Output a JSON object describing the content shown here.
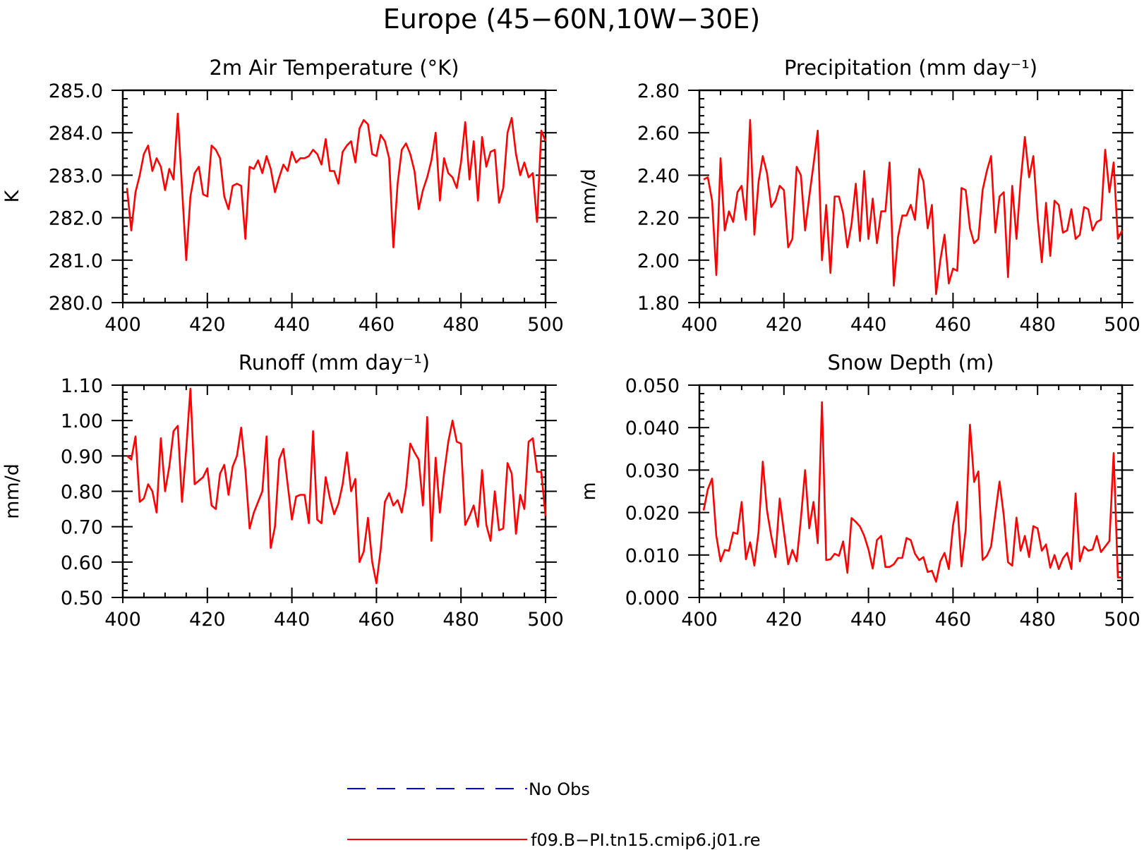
{
  "figure": {
    "title": "Europe (45−60N,10W−30E)"
  },
  "colors": {
    "model": "#ff0000",
    "obs": "#0000ff",
    "axes": "#000000"
  },
  "legend": {
    "entries": [
      {
        "label": "No Obs",
        "color": "#0000ff",
        "style": "dashed"
      },
      {
        "label": "f09.B−PI.tn15.cmip6.j01.re",
        "color": "#ff0000",
        "style": "solid"
      }
    ]
  },
  "chart_data": [
    {
      "type": "line",
      "title": "2m Air Temperature (°K)",
      "ylabel": "K",
      "xlim": [
        400,
        500
      ],
      "ylim": [
        280.0,
        285.0
      ],
      "xticks": [
        400,
        420,
        440,
        460,
        480,
        500
      ],
      "yticks": [
        280.0,
        281.0,
        282.0,
        283.0,
        284.0,
        285.0
      ],
      "ytick_labels": [
        "280.0",
        "281.0",
        "282.0",
        "283.0",
        "284.0",
        "285.0"
      ],
      "grid": false,
      "series": [
        {
          "x_start": 401,
          "values": [
            282.7,
            281.7,
            282.6,
            283.0,
            283.5,
            283.7,
            283.1,
            283.4,
            283.2,
            282.65,
            283.15,
            282.9,
            284.45,
            282.7,
            281.0,
            282.5,
            283.05,
            283.2,
            282.55,
            282.5,
            283.7,
            283.6,
            283.4,
            282.5,
            282.2,
            282.75,
            282.8,
            282.75,
            281.5,
            283.2,
            283.15,
            283.35,
            283.05,
            283.45,
            283.15,
            282.6,
            282.95,
            283.25,
            283.1,
            283.55,
            283.3,
            283.4,
            283.4,
            283.45,
            283.6,
            283.5,
            283.25,
            283.85,
            283.1,
            283.1,
            282.8,
            283.55,
            283.7,
            283.8,
            283.3,
            284.1,
            284.3,
            284.2,
            283.5,
            283.45,
            283.95,
            283.8,
            283.4,
            281.3,
            282.8,
            283.6,
            283.75,
            283.5,
            283.1,
            282.2,
            282.65,
            282.95,
            283.35,
            284.0,
            282.4,
            283.4,
            283.05,
            282.95,
            282.7,
            283.3,
            284.25,
            282.9,
            283.8,
            282.4,
            283.9,
            283.2,
            283.55,
            283.6,
            282.35,
            282.7,
            284.0,
            284.35,
            283.5,
            283.0,
            283.3,
            282.95,
            283.05,
            281.9,
            284.05,
            283.8
          ]
        }
      ]
    },
    {
      "type": "line",
      "title": "Precipitation (mm day⁻¹)",
      "ylabel": "mm/d",
      "xlim": [
        400,
        500
      ],
      "ylim": [
        1.8,
        2.8
      ],
      "xticks": [
        400,
        420,
        440,
        460,
        480,
        500
      ],
      "yticks": [
        1.8,
        2.0,
        2.2,
        2.4,
        2.6,
        2.8
      ],
      "ytick_labels": [
        "1.80",
        "2.00",
        "2.20",
        "2.40",
        "2.60",
        "2.80"
      ],
      "grid": false,
      "series": [
        {
          "x_start": 401,
          "values": [
            2.38,
            2.39,
            2.28,
            1.93,
            2.48,
            2.14,
            2.23,
            2.18,
            2.32,
            2.35,
            2.19,
            2.66,
            2.12,
            2.37,
            2.49,
            2.41,
            2.25,
            2.28,
            2.35,
            2.33,
            2.06,
            2.1,
            2.44,
            2.4,
            2.14,
            2.3,
            2.45,
            2.61,
            2.0,
            2.26,
            1.94,
            2.3,
            2.3,
            2.22,
            2.06,
            2.17,
            2.36,
            2.09,
            2.42,
            2.1,
            2.29,
            2.08,
            2.23,
            2.23,
            2.46,
            1.88,
            2.11,
            2.21,
            2.21,
            2.26,
            2.19,
            2.43,
            2.37,
            2.15,
            2.26,
            1.84,
            2.0,
            2.12,
            1.89,
            1.96,
            1.95,
            2.34,
            2.33,
            2.15,
            2.08,
            2.1,
            2.33,
            2.42,
            2.49,
            2.13,
            2.3,
            2.32,
            1.92,
            2.35,
            2.1,
            2.37,
            2.58,
            2.39,
            2.49,
            2.2,
            1.99,
            2.27,
            2.02,
            2.28,
            2.26,
            2.13,
            2.14,
            2.24,
            2.1,
            2.12,
            2.25,
            2.24,
            2.14,
            2.18,
            2.19,
            2.52,
            2.32,
            2.46,
            2.1,
            2.14
          ]
        }
      ]
    },
    {
      "type": "line",
      "title": "Runoff (mm day⁻¹)",
      "ylabel": "mm/d",
      "xlim": [
        400,
        500
      ],
      "ylim": [
        0.5,
        1.1
      ],
      "xticks": [
        400,
        420,
        440,
        460,
        480,
        500
      ],
      "yticks": [
        0.5,
        0.6,
        0.7,
        0.8,
        0.9,
        1.0,
        1.1
      ],
      "ytick_labels": [
        "0.50",
        "0.60",
        "0.70",
        "0.80",
        "0.90",
        "1.00",
        "1.10"
      ],
      "grid": false,
      "series": [
        {
          "x_start": 401,
          "values": [
            0.9,
            0.89,
            0.955,
            0.77,
            0.78,
            0.82,
            0.8,
            0.74,
            0.95,
            0.8,
            0.87,
            0.97,
            0.985,
            0.77,
            0.92,
            1.09,
            0.82,
            0.83,
            0.84,
            0.865,
            0.76,
            0.75,
            0.85,
            0.875,
            0.79,
            0.87,
            0.9,
            0.98,
            0.86,
            0.695,
            0.74,
            0.77,
            0.8,
            0.955,
            0.64,
            0.7,
            0.89,
            0.92,
            0.82,
            0.72,
            0.785,
            0.79,
            0.79,
            0.71,
            0.97,
            0.72,
            0.71,
            0.84,
            0.78,
            0.735,
            0.765,
            0.82,
            0.91,
            0.8,
            0.835,
            0.6,
            0.63,
            0.725,
            0.6,
            0.54,
            0.635,
            0.77,
            0.795,
            0.76,
            0.775,
            0.74,
            0.81,
            0.935,
            0.91,
            0.89,
            0.76,
            1.01,
            0.66,
            0.895,
            0.74,
            0.85,
            0.94,
            1.0,
            0.94,
            0.935,
            0.705,
            0.73,
            0.76,
            0.7,
            0.86,
            0.705,
            0.66,
            0.8,
            0.69,
            0.695,
            0.88,
            0.85,
            0.68,
            0.79,
            0.75,
            0.94,
            0.95,
            0.855,
            0.855,
            0.73
          ]
        }
      ]
    },
    {
      "type": "line",
      "title": "Snow Depth (m)",
      "ylabel": "m",
      "xlim": [
        400,
        500
      ],
      "ylim": [
        0.0,
        0.05
      ],
      "xticks": [
        400,
        420,
        440,
        460,
        480,
        500
      ],
      "yticks": [
        0.0,
        0.01,
        0.02,
        0.03,
        0.04,
        0.05
      ],
      "ytick_labels": [
        "0.000",
        "0.010",
        "0.020",
        "0.030",
        "0.040",
        "0.050"
      ],
      "grid": false,
      "series": [
        {
          "x_start": 401,
          "values": [
            0.0205,
            0.0255,
            0.028,
            0.0145,
            0.0085,
            0.0112,
            0.011,
            0.0153,
            0.015,
            0.0225,
            0.009,
            0.013,
            0.0075,
            0.0155,
            0.032,
            0.0205,
            0.0145,
            0.0095,
            0.0233,
            0.0155,
            0.0078,
            0.0112,
            0.0085,
            0.0185,
            0.03,
            0.0163,
            0.0225,
            0.0128,
            0.046,
            0.0088,
            0.009,
            0.0103,
            0.0098,
            0.0132,
            0.0058,
            0.0187,
            0.0178,
            0.0167,
            0.0145,
            0.0113,
            0.0068,
            0.0135,
            0.0145,
            0.0072,
            0.0072,
            0.0078,
            0.0093,
            0.0093,
            0.014,
            0.0135,
            0.0103,
            0.0088,
            0.0095,
            0.006,
            0.0063,
            0.0037,
            0.0085,
            0.0105,
            0.0067,
            0.017,
            0.0225,
            0.0073,
            0.016,
            0.0407,
            0.0272,
            0.0297,
            0.0088,
            0.0098,
            0.012,
            0.0197,
            0.0273,
            0.0193,
            0.0083,
            0.0075,
            0.0188,
            0.011,
            0.0145,
            0.0095,
            0.0168,
            0.0163,
            0.011,
            0.0125,
            0.007,
            0.01,
            0.0067,
            0.0092,
            0.0105,
            0.0067,
            0.0245,
            0.0085,
            0.012,
            0.011,
            0.0113,
            0.0145,
            0.0107,
            0.012,
            0.0133,
            0.034,
            0.0047,
            0.0047
          ]
        }
      ]
    }
  ]
}
